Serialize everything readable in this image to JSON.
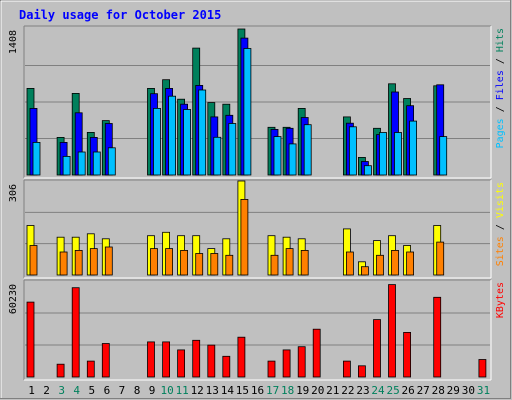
{
  "chart_data": {
    "type": "bar",
    "title": "Daily usage for October 2015",
    "colors": {
      "hits": "#00805c",
      "files": "#0000ff",
      "pages": "#00c0ff",
      "visits": "#ffff00",
      "sites": "#ff8000",
      "kbytes": "#ff0000",
      "weekend_day": "#00805c",
      "weekday": "#000000",
      "title": "#0000ff",
      "panel_bg": "#c0c0c0"
    },
    "days": [
      "1",
      "2",
      "3",
      "4",
      "5",
      "6",
      "7",
      "8",
      "9",
      "10",
      "11",
      "12",
      "13",
      "14",
      "15",
      "16",
      "17",
      "18",
      "19",
      "20",
      "21",
      "22",
      "23",
      "24",
      "25",
      "26",
      "27",
      "28",
      "29",
      "30",
      "31"
    ],
    "weekend_days": [
      "3",
      "4",
      "10",
      "11",
      "17",
      "18",
      "24",
      "25",
      "31"
    ],
    "panels": [
      {
        "id": "hits-files-pages",
        "max_label": "1408",
        "ymax": 1408,
        "legend": [
          {
            "text": "Pages",
            "color": "#00c0ff"
          },
          {
            "text": " / ",
            "color": "#000000"
          },
          {
            "text": "Files",
            "color": "#0000ff"
          },
          {
            "text": " / ",
            "color": "#000000"
          },
          {
            "text": "Hits",
            "color": "#00805c"
          }
        ],
        "series": [
          {
            "name": "Hits",
            "color": "#00805c",
            "values": [
              835,
              0,
              363,
              787,
              411,
              525,
              0,
              0,
              835,
              919,
              731,
              1224,
              698,
              683,
              1408,
              0,
              460,
              460,
              642,
              0,
              0,
              560,
              170,
              450,
              880,
              738,
              0,
              860,
              0,
              0,
              0
            ]
          },
          {
            "name": "Files",
            "color": "#0000ff",
            "values": [
              642,
              0,
              314,
              600,
              363,
              497,
              0,
              0,
              784,
              835,
              683,
              864,
              560,
              576,
              1320,
              0,
              440,
              450,
              555,
              0,
              0,
              500,
              130,
              390,
              800,
              668,
              0,
              870,
              0,
              0,
              0
            ]
          },
          {
            "name": "Pages",
            "color": "#00c0ff",
            "values": [
              314,
              0,
              179,
              222,
              222,
              262,
              0,
              0,
              642,
              760,
              632,
              820,
              364,
              497,
              1220,
              0,
              370,
              300,
              485,
              0,
              0,
              465,
              90,
              410,
              410,
              520,
              0,
              370,
              0,
              0,
              0
            ]
          }
        ]
      },
      {
        "id": "visits-sites",
        "max_label": "306",
        "ymax": 306,
        "legend": [
          {
            "text": "Sites",
            "color": "#ff8000"
          },
          {
            "text": " / ",
            "color": "#000000"
          },
          {
            "text": "Visits",
            "color": "#ffff00"
          }
        ],
        "series": [
          {
            "name": "Visits",
            "color": "#ffff00",
            "values": [
              161,
              0,
              123,
              123,
              134,
              118,
              0,
              0,
              128,
              139,
              128,
              128,
              86,
              118,
              306,
              0,
              128,
              123,
              118,
              0,
              0,
              150,
              43,
              112,
              128,
              96,
              0,
              161,
              0,
              0,
              0
            ]
          },
          {
            "name": "Sites",
            "color": "#ff8000",
            "values": [
              96,
              0,
              75,
              80,
              86,
              91,
              0,
              0,
              86,
              86,
              80,
              70,
              70,
              64,
              246,
              0,
              64,
              86,
              80,
              0,
              0,
              75,
              27,
              64,
              80,
              75,
              0,
              107,
              0,
              0,
              0
            ]
          }
        ]
      },
      {
        "id": "kbytes",
        "max_label": "60230",
        "ymax": 60230,
        "legend": [
          {
            "text": "KBytes",
            "color": "#ff0000"
          }
        ],
        "series": [
          {
            "name": "KBytes",
            "color": "#ff0000",
            "values": [
              47000,
              0,
              8000,
              56000,
              10000,
              21000,
              0,
              0,
              22000,
              22000,
              17000,
              23000,
              20000,
              13000,
              25000,
              0,
              10000,
              17000,
              19000,
              30000,
              0,
              10000,
              7000,
              36000,
              58000,
              28000,
              0,
              50000,
              0,
              0,
              11000
            ]
          }
        ]
      }
    ]
  }
}
